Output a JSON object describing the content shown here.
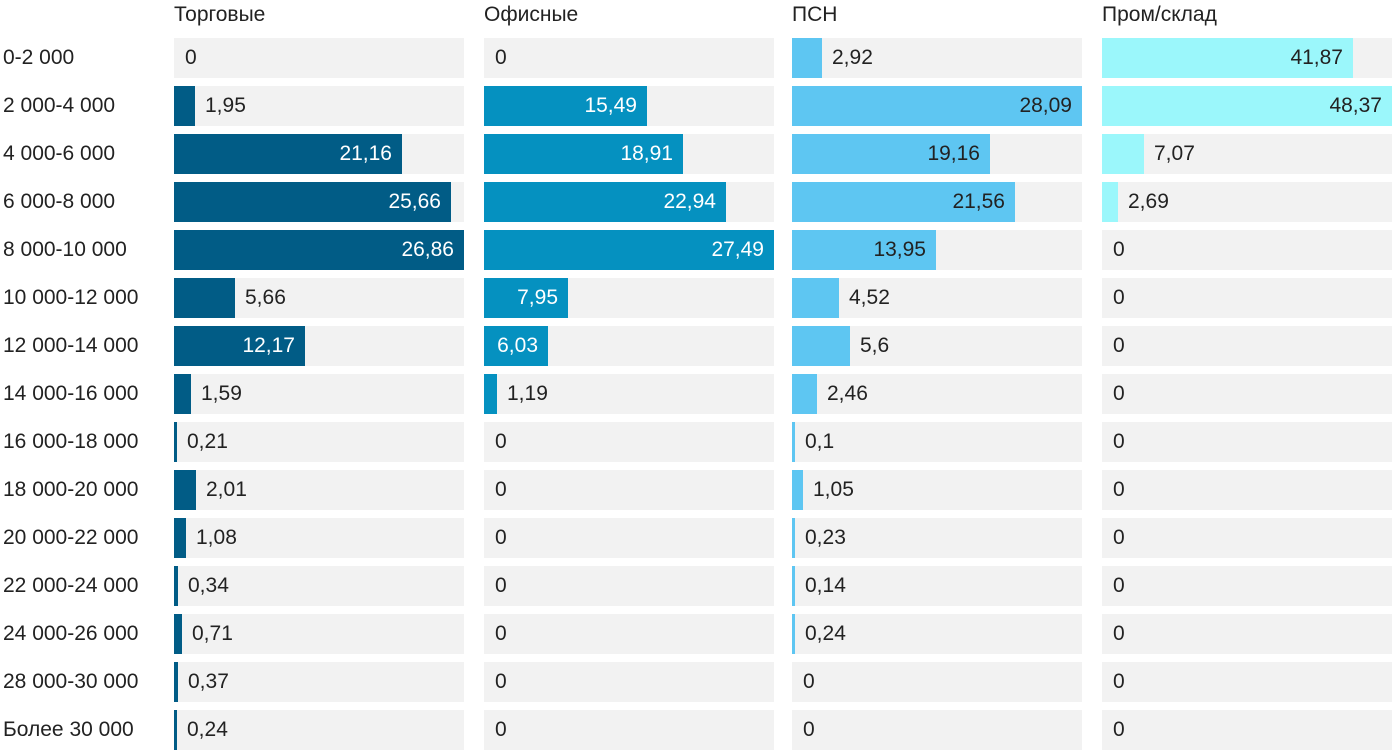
{
  "chart_data": {
    "type": "bar",
    "orientation": "horizontal",
    "layout": "small-multiples",
    "categories": [
      "0-2 000",
      "2 000-4 000",
      "4 000-6 000",
      "6 000-8 000",
      "8 000-10 000",
      "10 000-12 000",
      "12 000-14 000",
      "14 000-16 000",
      "16 000-18 000",
      "18 000-20 000",
      "20 000-22 000",
      "22 000-24 000",
      "24 000-26 000",
      "28 000-30 000",
      "Более 30 000"
    ],
    "series": [
      {
        "name": "Торговые",
        "color": "#015c86",
        "labels": [
          "0",
          "1,95",
          "21,16",
          "25,66",
          "26,86",
          "5,66",
          "12,17",
          "1,59",
          "0,21",
          "2,01",
          "1,08",
          "0,34",
          "0,71",
          "0,37",
          "0,24"
        ],
        "values": [
          0,
          1.95,
          21.16,
          25.66,
          26.86,
          5.66,
          12.17,
          1.59,
          0.21,
          2.01,
          1.08,
          0.34,
          0.71,
          0.37,
          0.24
        ]
      },
      {
        "name": "Офисные",
        "color": "#0591c0",
        "labels": [
          "0",
          "15,49",
          "18,91",
          "22,94",
          "27,49",
          "7,95",
          "6,03",
          "1,19",
          "0",
          "0",
          "0",
          "0",
          "0",
          "0",
          "0"
        ],
        "values": [
          0,
          15.49,
          18.91,
          22.94,
          27.49,
          7.95,
          6.03,
          1.19,
          0,
          0,
          0,
          0,
          0,
          0,
          0
        ]
      },
      {
        "name": "ПСН",
        "color": "#5ec6f2",
        "labels": [
          "2,92",
          "28,09",
          "19,16",
          "21,56",
          "13,95",
          "4,52",
          "5,6",
          "2,46",
          "0,1",
          "1,05",
          "0,23",
          "0,14",
          "0,24",
          "0",
          "0"
        ],
        "values": [
          2.92,
          28.09,
          19.16,
          21.56,
          13.95,
          4.52,
          5.6,
          2.46,
          0.1,
          1.05,
          0.23,
          0.14,
          0.24,
          0,
          0
        ]
      },
      {
        "name": "Пром/склад",
        "color": "#9bf7fb",
        "labels": [
          "41,87",
          "48,37",
          "7,07",
          "2,69",
          "0",
          "0",
          "0",
          "0",
          "0",
          "0",
          "0",
          "0",
          "0",
          "0",
          "0"
        ],
        "values": [
          41.87,
          48.37,
          7.07,
          2.69,
          0,
          0,
          0,
          0,
          0,
          0,
          0,
          0,
          0,
          0,
          0
        ]
      }
    ],
    "panel_max": [
      26.86,
      27.49,
      28.09,
      48.37
    ],
    "grid": false,
    "legend": "none"
  }
}
